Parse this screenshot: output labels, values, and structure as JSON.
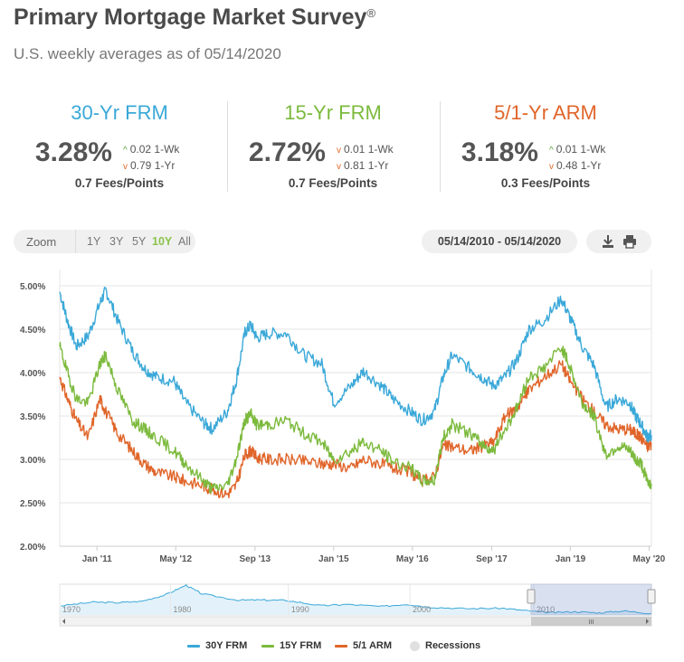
{
  "header": {
    "title": "Primary Mortgage Market Survey",
    "title_mark": "®",
    "subtitle": "U.S. weekly averages as of 05/14/2020"
  },
  "rates": [
    {
      "name": "30-Yr FRM",
      "color": "#3aa8d8",
      "value": "3.28%",
      "wk_change": "0.02 1-Wk",
      "wk_dir": "up",
      "yr_change": "0.79 1-Yr",
      "yr_dir": "down",
      "fees": "0.7 Fees/Points"
    },
    {
      "name": "15-Yr FRM",
      "color": "#7cba3d",
      "value": "2.72%",
      "wk_change": "0.01 1-Wk",
      "wk_dir": "down",
      "yr_change": "0.81 1-Yr",
      "yr_dir": "down",
      "fees": "0.7 Fees/Points"
    },
    {
      "name": "5/1-Yr ARM",
      "color": "#e0652a",
      "value": "3.18%",
      "wk_change": "0.01 1-Wk",
      "wk_dir": "up",
      "yr_change": "0.48 1-Yr",
      "yr_dir": "down",
      "fees": "0.3 Fees/Points"
    }
  ],
  "toolbar": {
    "zoom_label": "Zoom",
    "zoom_options": [
      "1Y",
      "3Y",
      "5Y",
      "10Y",
      "All"
    ],
    "zoom_active": "10Y",
    "date_range": "05/14/2010 - 05/14/2020",
    "download_icon": "download-icon",
    "print_icon": "print-icon"
  },
  "chart_data": {
    "type": "line",
    "y_ticks": [
      "2.00%",
      "2.50%",
      "3.00%",
      "3.50%",
      "4.00%",
      "4.50%",
      "5.00%"
    ],
    "ylim": [
      2.0,
      5.0
    ],
    "x_ticks": [
      {
        "label": "Jan '11",
        "t": 2011.0
      },
      {
        "label": "May '12",
        "t": 2012.33
      },
      {
        "label": "Sep '13",
        "t": 2013.67
      },
      {
        "label": "Jan '15",
        "t": 2015.0
      },
      {
        "label": "May '16",
        "t": 2016.33
      },
      {
        "label": "Sep '17",
        "t": 2017.67
      },
      {
        "label": "Jan '19",
        "t": 2019.0
      },
      {
        "label": "May '20",
        "t": 2020.33
      }
    ],
    "xlim": [
      2010.37,
      2020.37
    ],
    "grid": true,
    "series": [
      {
        "name": "30Y FRM",
        "color": "#3aa8d8",
        "x": [
          2010.37,
          2010.5,
          2010.65,
          2010.85,
          2011.05,
          2011.15,
          2011.35,
          2011.6,
          2011.8,
          2012.0,
          2012.3,
          2012.5,
          2012.8,
          2012.95,
          2013.2,
          2013.35,
          2013.5,
          2013.6,
          2013.7,
          2013.9,
          2014.2,
          2014.5,
          2014.8,
          2015.0,
          2015.3,
          2015.5,
          2015.8,
          2016.0,
          2016.3,
          2016.5,
          2016.7,
          2016.85,
          2017.0,
          2017.3,
          2017.5,
          2017.7,
          2017.9,
          2018.1,
          2018.3,
          2018.55,
          2018.85,
          2019.0,
          2019.2,
          2019.4,
          2019.6,
          2019.8,
          2020.0,
          2020.1,
          2020.2,
          2020.3,
          2020.37
        ],
        "y": [
          4.93,
          4.6,
          4.3,
          4.42,
          4.8,
          4.95,
          4.6,
          4.25,
          4.05,
          3.95,
          3.9,
          3.65,
          3.42,
          3.35,
          3.55,
          3.9,
          4.46,
          4.55,
          4.4,
          4.45,
          4.45,
          4.2,
          4.1,
          3.65,
          3.85,
          4.02,
          3.85,
          3.7,
          3.55,
          3.45,
          3.55,
          3.95,
          4.2,
          4.05,
          3.95,
          3.85,
          3.95,
          4.15,
          4.5,
          4.6,
          4.85,
          4.62,
          4.3,
          4.08,
          3.6,
          3.7,
          3.65,
          3.5,
          3.4,
          3.26,
          3.28
        ]
      },
      {
        "name": "15Y FRM",
        "color": "#7cba3d",
        "x": [
          2010.37,
          2010.5,
          2010.65,
          2010.85,
          2011.05,
          2011.15,
          2011.35,
          2011.6,
          2011.8,
          2012.0,
          2012.3,
          2012.5,
          2012.8,
          2012.95,
          2013.2,
          2013.35,
          2013.5,
          2013.6,
          2013.7,
          2013.9,
          2014.2,
          2014.5,
          2014.8,
          2015.0,
          2015.3,
          2015.5,
          2015.8,
          2016.0,
          2016.3,
          2016.5,
          2016.7,
          2016.85,
          2017.0,
          2017.3,
          2017.5,
          2017.7,
          2017.9,
          2018.1,
          2018.3,
          2018.55,
          2018.85,
          2019.0,
          2019.2,
          2019.4,
          2019.6,
          2019.8,
          2020.0,
          2020.1,
          2020.2,
          2020.3,
          2020.37
        ],
        "y": [
          4.3,
          4.0,
          3.7,
          3.65,
          4.1,
          4.2,
          3.8,
          3.45,
          3.35,
          3.25,
          3.1,
          2.95,
          2.75,
          2.66,
          2.7,
          3.0,
          3.45,
          3.52,
          3.4,
          3.4,
          3.45,
          3.3,
          3.2,
          3.0,
          3.1,
          3.2,
          3.1,
          2.98,
          2.9,
          2.75,
          2.76,
          3.25,
          3.4,
          3.3,
          3.18,
          3.1,
          3.35,
          3.6,
          3.95,
          4.05,
          4.3,
          4.05,
          3.65,
          3.5,
          3.05,
          3.15,
          3.1,
          3.0,
          2.95,
          2.75,
          2.72
        ]
      },
      {
        "name": "5/1 ARM",
        "color": "#e0652a",
        "x": [
          2010.37,
          2010.5,
          2010.65,
          2010.85,
          2011.05,
          2011.15,
          2011.35,
          2011.6,
          2011.8,
          2012.0,
          2012.3,
          2012.5,
          2012.8,
          2012.95,
          2013.2,
          2013.35,
          2013.5,
          2013.6,
          2013.7,
          2013.9,
          2014.2,
          2014.5,
          2014.8,
          2015.0,
          2015.3,
          2015.5,
          2015.8,
          2016.0,
          2016.3,
          2016.5,
          2016.7,
          2016.85,
          2017.0,
          2017.3,
          2017.5,
          2017.7,
          2017.9,
          2018.1,
          2018.3,
          2018.55,
          2018.85,
          2019.0,
          2019.2,
          2019.4,
          2019.6,
          2019.8,
          2020.0,
          2020.1,
          2020.2,
          2020.3,
          2020.37
        ],
        "y": [
          3.95,
          3.7,
          3.45,
          3.25,
          3.7,
          3.55,
          3.3,
          3.1,
          2.95,
          2.85,
          2.8,
          2.75,
          2.7,
          2.65,
          2.6,
          2.7,
          3.05,
          3.1,
          3.02,
          3.0,
          3.0,
          2.98,
          2.95,
          2.95,
          2.9,
          3.0,
          2.95,
          2.9,
          2.85,
          2.75,
          2.8,
          3.15,
          3.15,
          3.1,
          3.15,
          3.2,
          3.5,
          3.6,
          3.8,
          3.95,
          4.1,
          3.9,
          3.7,
          3.55,
          3.4,
          3.35,
          3.35,
          3.3,
          3.25,
          3.15,
          3.18
        ]
      }
    ]
  },
  "navigator": {
    "labels": [
      {
        "label": "1970",
        "t": 1971.2
      },
      {
        "label": "1980",
        "t": 1980.4
      },
      {
        "label": "1990",
        "t": 1990.2
      },
      {
        "label": "2000",
        "t": 2000.3
      },
      {
        "label": "2010",
        "t": 2010.6
      }
    ],
    "xlim": [
      1971.2,
      2020.37
    ],
    "selection": [
      2010.37,
      2020.37
    ],
    "series_x": [
      1971.3,
      1974,
      1976,
      1978,
      1980,
      1981.7,
      1983,
      1986,
      1988,
      1990,
      1993,
      1995,
      1998,
      2000,
      2002,
      2005,
      2008,
      2010,
      2012,
      2014,
      2016,
      2018,
      2020.37
    ],
    "series_y": [
      7.3,
      9.2,
      8.9,
      9.6,
      13.0,
      18.0,
      13.5,
      10.2,
      10.3,
      10.1,
      7.3,
      8.0,
      6.9,
      8.1,
      6.5,
      5.8,
      6.0,
      4.7,
      3.7,
      4.2,
      3.6,
      4.6,
      3.28
    ],
    "ylim": [
      2.5,
      18.5
    ],
    "handle_mark": "III"
  },
  "legend": [
    {
      "label": "30Y FRM",
      "type": "line",
      "color": "#3aa8d8"
    },
    {
      "label": "15Y FRM",
      "type": "line",
      "color": "#7cba3d"
    },
    {
      "label": "5/1 ARM",
      "type": "line",
      "color": "#e0652a"
    },
    {
      "label": "Recessions",
      "type": "dot",
      "color": "#e0e0e0"
    }
  ]
}
